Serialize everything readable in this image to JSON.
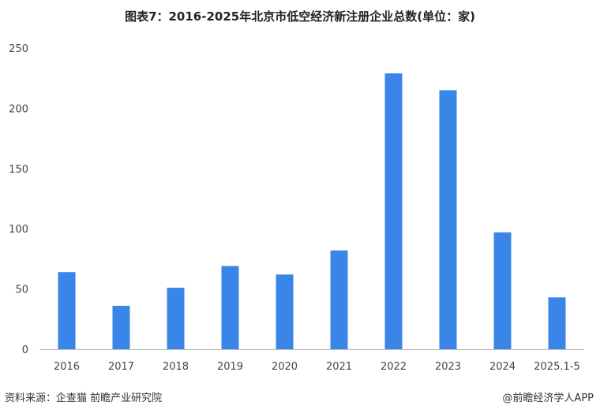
{
  "title": "图表7：2016-2025年北京市低空经济新注册企业总数(单位：家)",
  "source": "资料来源：企查猫 前瞻产业研究院",
  "credit": "@前瞻经济学人APP",
  "colors": {
    "bar": "#3a86e8",
    "axis": "#bbbbbb"
  },
  "chart_data": {
    "type": "bar",
    "title": "图表7：2016-2025年北京市低空经济新注册企业总数(单位：家)",
    "categories": [
      "2016",
      "2017",
      "2018",
      "2019",
      "2020",
      "2021",
      "2022",
      "2023",
      "2024",
      "2025.1-5"
    ],
    "values": [
      64,
      36,
      51,
      69,
      62,
      82,
      229,
      215,
      97,
      43
    ],
    "ylim": [
      0,
      250
    ],
    "yticks": [
      0,
      50,
      100,
      150,
      200,
      250
    ],
    "grid": false,
    "legend": "none"
  }
}
